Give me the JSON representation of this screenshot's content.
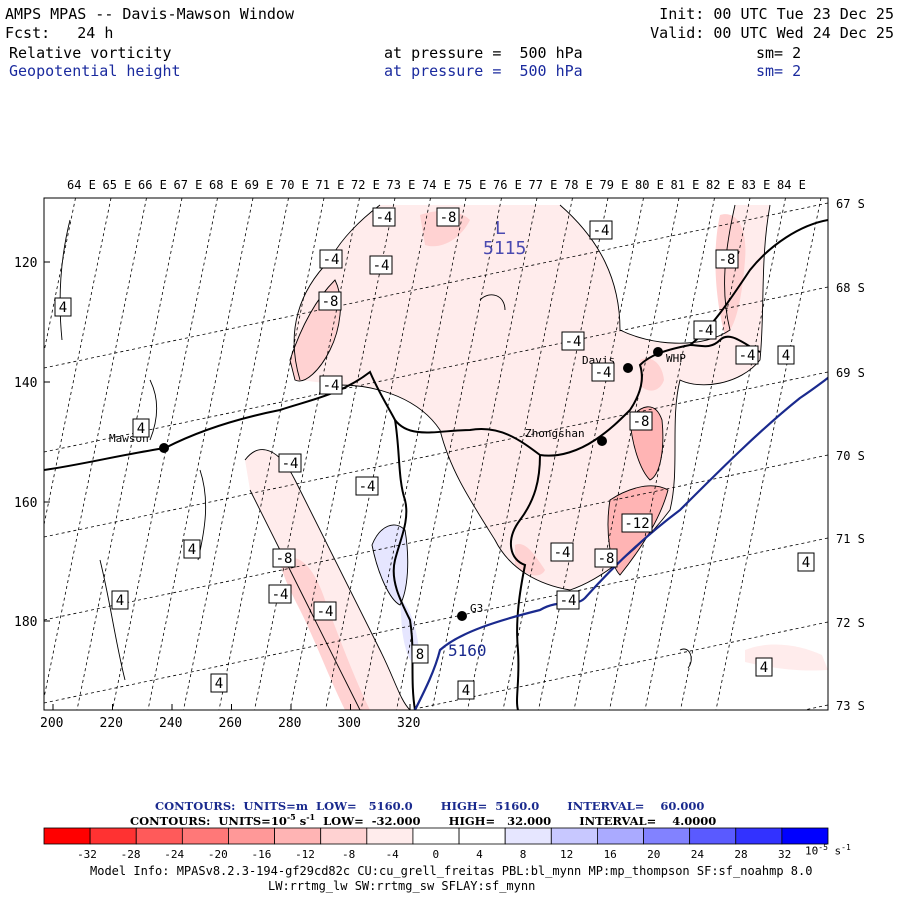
{
  "header": {
    "title": "AMPS MPAS -- Davis-Mawson Window",
    "fcst": "Fcst:   24 h",
    "init": "Init: 00 UTC Tue 23 Dec 25",
    "valid": "Valid: 00 UTC Wed 24 Dec 25",
    "field1": {
      "name": "Relative vorticity",
      "level": "at pressure =  500 hPa",
      "sm": "sm= 2"
    },
    "field2": {
      "name": "Geopotential height",
      "level": "at pressure =  500 hPa",
      "sm": "sm= 2"
    }
  },
  "map": {
    "top_lon_labels": [
      "64 E",
      "65 E",
      "66 E",
      "67 E",
      "68 E",
      "69 E",
      "70 E",
      "71 E",
      "72 E",
      "73 E",
      "74 E",
      "75 E",
      "76 E",
      "77 E",
      "78 E",
      "79 E",
      "80 E",
      "81 E",
      "82 E",
      "83 E",
      "84 E"
    ],
    "right_lat_labels": [
      "67 S",
      "68 S",
      "69 S",
      "70 S",
      "71 S",
      "72 S",
      "73 S"
    ],
    "left_y_ticks": [
      "120",
      "140",
      "160",
      "180"
    ],
    "bottom_x_ticks": [
      "200",
      "220",
      "240",
      "260",
      "280",
      "300",
      "320"
    ],
    "stations": [
      {
        "name": "Mawson"
      },
      {
        "name": "Davis"
      },
      {
        "name": "WHP"
      },
      {
        "name": "Zhongshan"
      },
      {
        "name": "G3"
      }
    ],
    "low_label": "L",
    "low_value": "5115",
    "height_contour_label": "5160",
    "vort_labels": [
      "-4",
      "-8",
      "-4",
      "-4",
      "-8",
      "-4",
      "-4",
      "4",
      "4",
      "-4",
      "-4",
      "-8",
      "-4",
      "-4",
      "-8",
      "-12",
      "-4",
      "-8",
      "-4",
      "-8",
      "-4",
      "-4",
      "4",
      "4",
      "-4",
      "-4",
      "4",
      "8",
      "4",
      "4",
      "4",
      "4"
    ]
  },
  "legend": {
    "height_line": "CONTOURS:  UNITS=m  LOW=   5160.0       HIGH=  5160.0       INTERVAL=    60.000",
    "vort_line_a": "CONTOURS:  UNITS=10",
    "vort_line_exp": "-5",
    "vort_line_b": " s",
    "vort_line_exp2": "-1",
    "vort_line_c": "  LOW=  -32.000       HIGH=   32.000       INTERVAL=    4.0000",
    "colorbar_labels": [
      "-32",
      "-28",
      "-24",
      "-20",
      "-16",
      "-12",
      "-8",
      "-4",
      "0",
      "4",
      "8",
      "12",
      "16",
      "20",
      "24",
      "28",
      "32"
    ],
    "colorbar_colors": [
      "#ff0000",
      "#ff3232",
      "#ff5a5a",
      "#ff7878",
      "#ff9898",
      "#ffb4b4",
      "#ffd2d2",
      "#ffecec",
      "#ffffff",
      "#ffffff",
      "#e6e6ff",
      "#c8c8ff",
      "#aaaaff",
      "#8282ff",
      "#5a5aff",
      "#3232ff",
      "#0000ff"
    ],
    "unit_prefix": "10",
    "unit_exp": "-5",
    "unit_s": " s",
    "unit_exp2": "-1"
  },
  "footer": {
    "model_info": "Model Info: MPASv8.2.3-194-gf29cd82c CU:cu_grell_freitas PBL:bl_mynn MP:mp_thompson SF:sf_noahmp 8.0",
    "model_info2": "LW:rrtmg_lw SW:rrtmg_sw SFLAY:sf_mynn"
  }
}
